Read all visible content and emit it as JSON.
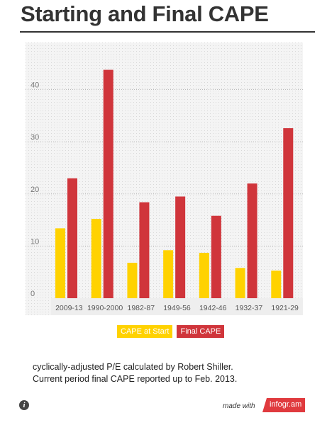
{
  "title": "Starting and Final CAPE",
  "chart_data": {
    "type": "bar",
    "categories": [
      "2009-13",
      "1990-2000",
      "1982-87",
      "1949-56",
      "1942-46",
      "1932-37",
      "1921-29"
    ],
    "series": [
      {
        "name": "CAPE at Start",
        "color": "#ffd200",
        "values": [
          13.4,
          15.2,
          6.8,
          9.2,
          8.7,
          5.8,
          5.3
        ]
      },
      {
        "name": "Final CAPE",
        "color": "#d0353b",
        "values": [
          23.0,
          43.8,
          18.4,
          19.5,
          15.8,
          22.0,
          32.6
        ]
      }
    ],
    "ylim": [
      0,
      47
    ],
    "yticks": [
      0,
      10,
      20,
      30,
      40
    ],
    "grid": true,
    "legend_position": "bottom"
  },
  "caption": {
    "line1": "cyclically-adjusted P/E calculated by Robert Shiller.",
    "line2": "Current period final CAPE reported up to Feb. 2013."
  },
  "footer": {
    "made_with": "made with",
    "brand": "infogr.am",
    "info_icon": "i"
  }
}
